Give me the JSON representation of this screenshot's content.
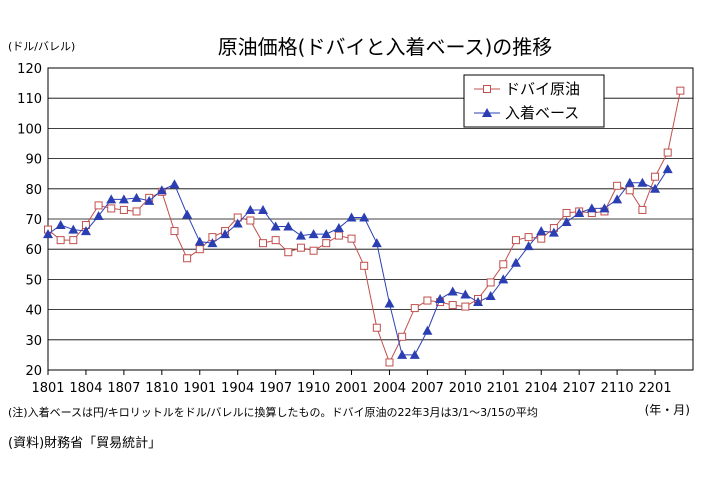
{
  "chart_data": {
    "type": "line",
    "title": "原油価格(ドバイと入着ベース)の推移",
    "yunit_label": "(ドル/バレル)",
    "xunit_label": "(年・月)",
    "ylim": [
      20,
      120
    ],
    "yticks": [
      20,
      30,
      40,
      50,
      60,
      70,
      80,
      90,
      100,
      110,
      120
    ],
    "xtick_labels": [
      "1801",
      "1804",
      "1807",
      "1810",
      "1901",
      "1904",
      "1907",
      "1910",
      "2001",
      "2004",
      "2007",
      "2010",
      "2101",
      "2104",
      "2107",
      "2110",
      "2201"
    ],
    "grid": true,
    "legend_position": "top-right",
    "series": [
      {
        "name": "ドバイ原油",
        "marker": "square-open",
        "color": "#C0504D",
        "values": [
          66.5,
          63,
          63,
          68,
          74.5,
          73.5,
          73,
          72.5,
          77,
          79,
          66,
          57,
          60,
          64,
          66,
          70.5,
          69.5,
          62,
          63,
          59,
          60.5,
          59.5,
          62,
          64.5,
          63.5,
          54.5,
          34,
          22.5,
          31,
          40.5,
          43,
          42.5,
          41.5,
          41,
          43.5,
          49,
          55,
          63,
          64,
          63.5,
          67,
          72,
          72.5,
          72,
          72.5,
          81,
          79.5,
          73,
          84,
          92,
          112.5
        ]
      },
      {
        "name": "入着ベース",
        "marker": "triangle-filled",
        "color": "#2B3FB3",
        "values": [
          65,
          68,
          66.5,
          66,
          71,
          76.5,
          76.5,
          77,
          76,
          79.5,
          81.5,
          71.5,
          62.5,
          62,
          65,
          68.5,
          73,
          73,
          67.5,
          67.5,
          64.5,
          65,
          65,
          67,
          70.5,
          70.5,
          62,
          42,
          25,
          25,
          33,
          43.5,
          46,
          45,
          42.5,
          44.5,
          50,
          55.5,
          61,
          66,
          65.5,
          69,
          72,
          73.5,
          73.5,
          76.5,
          82,
          82,
          80,
          86.5
        ]
      }
    ],
    "annotations": {
      "note": "(注)入着ベースは円/キロリットルをドル/バレルに換算したもの。ドバイ原油の22年3月は3/1～3/15の平均",
      "source": "(資料)財務省「貿易統計」"
    }
  }
}
